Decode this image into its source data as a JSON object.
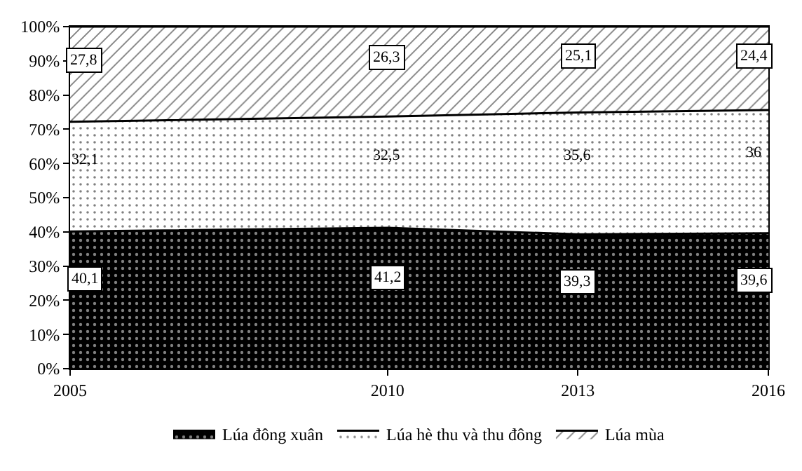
{
  "chart_data": {
    "type": "area",
    "stacked": true,
    "x": [
      2005,
      2010,
      2013,
      2016
    ],
    "series": [
      {
        "name": "Lúa đông xuân",
        "color": "#000000",
        "values": [
          40.1,
          41.2,
          39.3,
          39.6
        ],
        "value_labels": [
          "40,1",
          "41,2",
          "39,3",
          "39,6"
        ]
      },
      {
        "name": "Lúa hè thu và thu đông",
        "color": "#ffffff",
        "values": [
          32.1,
          32.5,
          35.6,
          36
        ],
        "value_labels": [
          "32,1",
          "32,5",
          "35,6",
          "36"
        ]
      },
      {
        "name": "Lúa mùa",
        "color": "#ffffff",
        "values": [
          27.8,
          26.3,
          25.1,
          24.4
        ],
        "value_labels": [
          "27,8",
          "26,3",
          "25,1",
          "24,4"
        ]
      }
    ],
    "xlim": [
      2005,
      2016
    ],
    "xticks": [
      2005,
      2010,
      2013,
      2016
    ],
    "ylim": [
      0,
      100
    ],
    "yticks": [
      {
        "value": 0,
        "label": "0%"
      },
      {
        "value": 10,
        "label": "10%"
      },
      {
        "value": 20,
        "label": "20%"
      },
      {
        "value": 30,
        "label": "30%"
      },
      {
        "value": 40,
        "label": "40%"
      },
      {
        "value": 50,
        "label": "50%"
      },
      {
        "value": 60,
        "label": "60%"
      },
      {
        "value": 70,
        "label": "70%"
      },
      {
        "value": 80,
        "label": "80%"
      },
      {
        "value": 90,
        "label": "90%"
      },
      {
        "value": 100,
        "label": "100%"
      }
    ],
    "legend": "bottom"
  }
}
